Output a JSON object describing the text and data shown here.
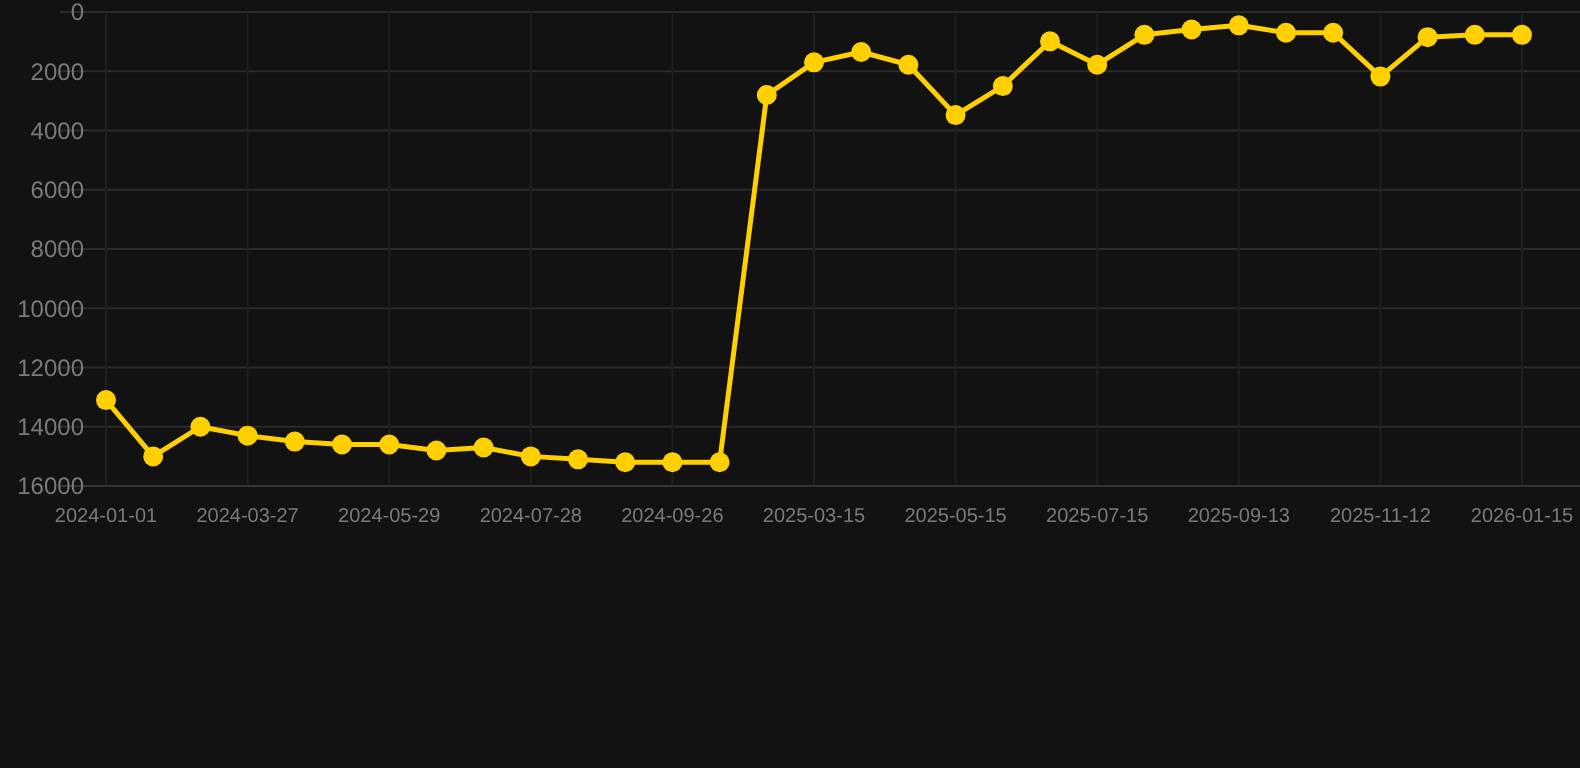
{
  "chart_data": {
    "type": "line",
    "categories": [
      "2024-01-01",
      null,
      null,
      "2024-03-27",
      null,
      null,
      "2024-05-29",
      null,
      null,
      "2024-07-28",
      null,
      null,
      "2024-09-26",
      null,
      null,
      "2025-03-15",
      null,
      null,
      "2025-05-15",
      null,
      null,
      "2025-07-15",
      null,
      null,
      "2025-09-13",
      null,
      null,
      "2025-11-12",
      null,
      null,
      "2026-01-15"
    ],
    "series": [
      {
        "color": "#ffd000",
        "values": [
          13100,
          15000,
          14000,
          14300,
          14500,
          14600,
          14600,
          14800,
          14700,
          15000,
          15100,
          15200,
          15200,
          15200,
          2800,
          1700,
          1350,
          1780,
          3480,
          2500,
          990,
          1780,
          770,
          590,
          450,
          700,
          700,
          2180,
          850,
          770,
          770
        ]
      }
    ],
    "ylim": [
      16000,
      0
    ],
    "yticks": [
      0,
      2000,
      4000,
      6000,
      8000,
      10000,
      12000,
      14000,
      16000
    ],
    "grid": true,
    "marker": "circle",
    "line_style": "solid"
  }
}
